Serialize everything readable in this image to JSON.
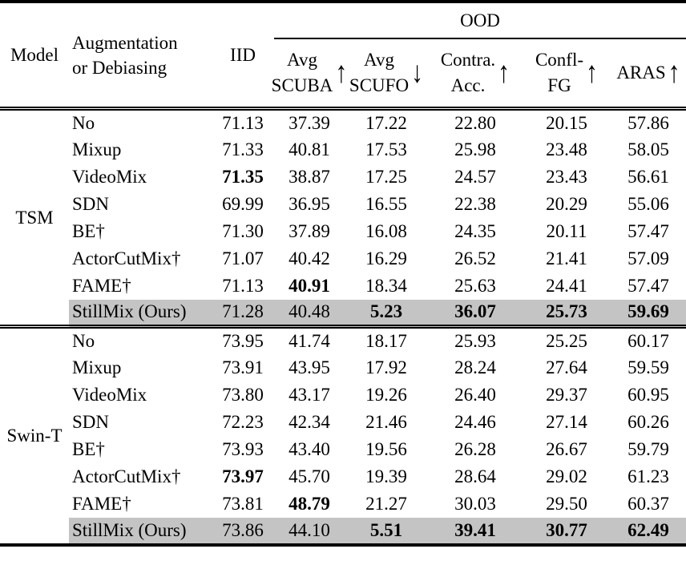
{
  "table": {
    "highlight_color": "#c4c4c4",
    "header": {
      "model": "Model",
      "augmentation_line1": "Augmentation",
      "augmentation_line2": "or Debiasing",
      "iid": "IID",
      "ood": "OOD",
      "ood_columns": [
        {
          "line1": "Avg",
          "line2": "SCUBA",
          "arrow": "↑",
          "direction": "up"
        },
        {
          "line1": "Avg",
          "line2": "SCUFO",
          "arrow": "↓",
          "direction": "down"
        },
        {
          "line1": "Contra.",
          "line2": "Acc.",
          "arrow": "↑",
          "direction": "up"
        },
        {
          "line1": "Confl-",
          "line2": "FG",
          "arrow": "↑",
          "direction": "up"
        },
        {
          "line1": "ARAS",
          "line2": "",
          "arrow": "↑",
          "direction": "up"
        }
      ]
    },
    "groups": [
      {
        "model": "TSM",
        "rows": [
          {
            "method": "No",
            "values": [
              "71.13",
              "37.39",
              "17.22",
              "22.80",
              "20.15",
              "57.86"
            ],
            "bold": [],
            "highlight": false
          },
          {
            "method": "Mixup",
            "values": [
              "71.33",
              "40.81",
              "17.53",
              "25.98",
              "23.48",
              "58.05"
            ],
            "bold": [],
            "highlight": false
          },
          {
            "method": "VideoMix",
            "values": [
              "71.35",
              "38.87",
              "17.25",
              "24.57",
              "23.43",
              "56.61"
            ],
            "bold": [
              0
            ],
            "highlight": false
          },
          {
            "method": "SDN",
            "values": [
              "69.99",
              "36.95",
              "16.55",
              "22.38",
              "20.29",
              "55.06"
            ],
            "bold": [],
            "highlight": false
          },
          {
            "method": "BE†",
            "values": [
              "71.30",
              "37.89",
              "16.08",
              "24.35",
              "20.11",
              "57.47"
            ],
            "bold": [],
            "highlight": false
          },
          {
            "method": "ActorCutMix†",
            "values": [
              "71.07",
              "40.42",
              "16.29",
              "26.52",
              "21.41",
              "57.09"
            ],
            "bold": [],
            "highlight": false
          },
          {
            "method": "FAME†",
            "values": [
              "71.13",
              "40.91",
              "18.34",
              "25.63",
              "24.41",
              "57.47"
            ],
            "bold": [
              1
            ],
            "highlight": false
          },
          {
            "method": "StillMix (Ours)",
            "values": [
              "71.28",
              "40.48",
              "5.23",
              "36.07",
              "25.73",
              "59.69"
            ],
            "bold": [
              2,
              3,
              4,
              5
            ],
            "highlight": true
          }
        ]
      },
      {
        "model": "Swin-T",
        "rows": [
          {
            "method": "No",
            "values": [
              "73.95",
              "41.74",
              "18.17",
              "25.93",
              "25.25",
              "60.17"
            ],
            "bold": [],
            "highlight": false
          },
          {
            "method": "Mixup",
            "values": [
              "73.91",
              "43.95",
              "17.92",
              "28.24",
              "27.64",
              "59.59"
            ],
            "bold": [],
            "highlight": false
          },
          {
            "method": "VideoMix",
            "values": [
              "73.80",
              "43.17",
              "19.26",
              "26.40",
              "29.37",
              "60.95"
            ],
            "bold": [],
            "highlight": false
          },
          {
            "method": "SDN",
            "values": [
              "72.23",
              "42.34",
              "21.46",
              "24.46",
              "27.14",
              "60.26"
            ],
            "bold": [],
            "highlight": false
          },
          {
            "method": "BE†",
            "values": [
              "73.93",
              "43.40",
              "19.56",
              "26.28",
              "26.67",
              "59.79"
            ],
            "bold": [],
            "highlight": false
          },
          {
            "method": "ActorCutMix†",
            "values": [
              "73.97",
              "45.70",
              "19.39",
              "28.64",
              "29.02",
              "61.23"
            ],
            "bold": [
              0
            ],
            "highlight": false
          },
          {
            "method": "FAME†",
            "values": [
              "73.81",
              "48.79",
              "21.27",
              "30.03",
              "29.50",
              "60.37"
            ],
            "bold": [
              1
            ],
            "highlight": false
          },
          {
            "method": "StillMix (Ours)",
            "values": [
              "73.86",
              "44.10",
              "5.51",
              "39.41",
              "30.77",
              "62.49"
            ],
            "bold": [
              2,
              3,
              4,
              5
            ],
            "highlight": true
          }
        ]
      }
    ]
  }
}
